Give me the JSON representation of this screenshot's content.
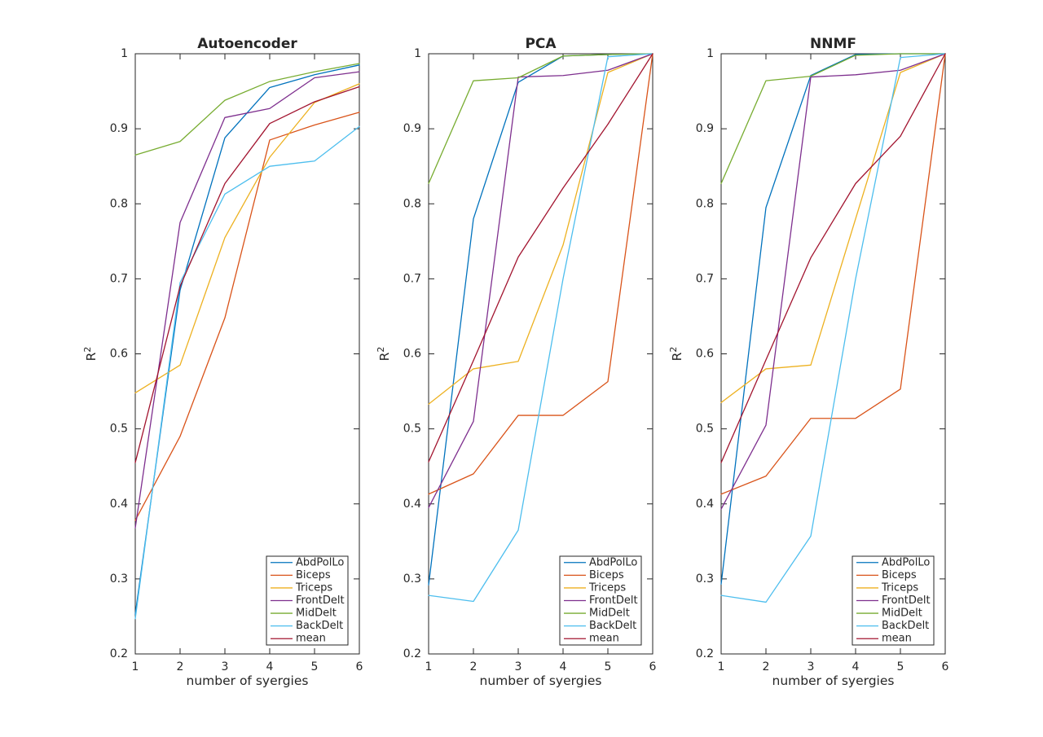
{
  "figure": {
    "background": "#ffffff",
    "axis_color": "#262626",
    "text_color": "#262626"
  },
  "chart_data": [
    {
      "type": "line",
      "title": "Autoencoder",
      "xlabel": "number of syergies",
      "ylabel": {
        "base": "R",
        "superscript": "2"
      },
      "x": [
        1,
        2,
        3,
        4,
        5,
        6
      ],
      "xlim": [
        1,
        6
      ],
      "ylim": [
        0.2,
        1.0
      ],
      "xticks": [
        1,
        2,
        3,
        4,
        5,
        6
      ],
      "xtick_labels": [
        "1",
        "2",
        "3",
        "4",
        "5",
        "6"
      ],
      "yticks": [
        0.2,
        0.3,
        0.4,
        0.5,
        0.6,
        0.7,
        0.8,
        0.9,
        1.0
      ],
      "ytick_labels": [
        "0.2",
        "0.3",
        "0.4",
        "0.5",
        "0.6",
        "0.7",
        "0.8",
        "0.9",
        "1"
      ],
      "grid": false,
      "legend_position": "bottom-right",
      "series": [
        {
          "name": "AbdPolLo",
          "color": "#0072BD",
          "values": [
            0.253,
            0.685,
            0.888,
            0.955,
            0.972,
            0.985
          ]
        },
        {
          "name": "Biceps",
          "color": "#D95319",
          "values": [
            0.378,
            0.49,
            0.648,
            0.885,
            0.905,
            0.922
          ]
        },
        {
          "name": "Triceps",
          "color": "#EDB120",
          "values": [
            0.548,
            0.585,
            0.755,
            0.862,
            0.935,
            0.96
          ]
        },
        {
          "name": "FrontDelt",
          "color": "#7E2F8E",
          "values": [
            0.368,
            0.775,
            0.915,
            0.927,
            0.968,
            0.976
          ]
        },
        {
          "name": "MidDelt",
          "color": "#77AC30",
          "values": [
            0.865,
            0.883,
            0.938,
            0.963,
            0.976,
            0.987
          ]
        },
        {
          "name": "BackDelt",
          "color": "#4DBEEE",
          "values": [
            0.247,
            0.695,
            0.813,
            0.85,
            0.857,
            0.903
          ]
        },
        {
          "name": "mean",
          "color": "#A2142F",
          "values": [
            0.455,
            0.69,
            0.827,
            0.907,
            0.936,
            0.956
          ]
        }
      ]
    },
    {
      "type": "line",
      "title": "PCA",
      "xlabel": "number of syergies",
      "ylabel": {
        "base": "R",
        "superscript": "2"
      },
      "x": [
        1,
        2,
        3,
        4,
        5,
        6
      ],
      "xlim": [
        1,
        6
      ],
      "ylim": [
        0.2,
        1.0
      ],
      "xticks": [
        1,
        2,
        3,
        4,
        5,
        6
      ],
      "xtick_labels": [
        "1",
        "2",
        "3",
        "4",
        "5",
        "6"
      ],
      "yticks": [
        0.2,
        0.3,
        0.4,
        0.5,
        0.6,
        0.7,
        0.8,
        0.9,
        1.0
      ],
      "ytick_labels": [
        "0.2",
        "0.3",
        "0.4",
        "0.5",
        "0.6",
        "0.7",
        "0.8",
        "0.9",
        "1"
      ],
      "grid": false,
      "legend_position": "bottom-right",
      "series": [
        {
          "name": "AbdPolLo",
          "color": "#0072BD",
          "values": [
            0.292,
            0.78,
            0.962,
            0.997,
            0.999,
            1.0
          ]
        },
        {
          "name": "Biceps",
          "color": "#D95319",
          "values": [
            0.413,
            0.44,
            0.518,
            0.518,
            0.563,
            1.0
          ]
        },
        {
          "name": "Triceps",
          "color": "#EDB120",
          "values": [
            0.533,
            0.58,
            0.59,
            0.745,
            0.975,
            1.0
          ]
        },
        {
          "name": "FrontDelt",
          "color": "#7E2F8E",
          "values": [
            0.395,
            0.51,
            0.969,
            0.971,
            0.978,
            1.0
          ]
        },
        {
          "name": "MidDelt",
          "color": "#77AC30",
          "values": [
            0.827,
            0.964,
            0.968,
            0.997,
            0.999,
            1.0
          ]
        },
        {
          "name": "BackDelt",
          "color": "#4DBEEE",
          "values": [
            0.278,
            0.27,
            0.365,
            0.7,
            0.996,
            1.0
          ]
        },
        {
          "name": "mean",
          "color": "#A2142F",
          "values": [
            0.456,
            0.591,
            0.729,
            0.821,
            0.906,
            1.0
          ]
        }
      ]
    },
    {
      "type": "line",
      "title": "NNMF",
      "xlabel": "number of syergies",
      "ylabel": {
        "base": "R",
        "superscript": "2"
      },
      "x": [
        1,
        2,
        3,
        4,
        5,
        6
      ],
      "xlim": [
        1,
        6
      ],
      "ylim": [
        0.2,
        1.0
      ],
      "xticks": [
        1,
        2,
        3,
        4,
        5,
        6
      ],
      "xtick_labels": [
        "1",
        "2",
        "3",
        "4",
        "5",
        "6"
      ],
      "yticks": [
        0.2,
        0.3,
        0.4,
        0.5,
        0.6,
        0.7,
        0.8,
        0.9,
        1.0
      ],
      "ytick_labels": [
        "0.2",
        "0.3",
        "0.4",
        "0.5",
        "0.6",
        "0.7",
        "0.8",
        "0.9",
        "1"
      ],
      "grid": false,
      "legend_position": "bottom-right",
      "series": [
        {
          "name": "AbdPolLo",
          "color": "#0072BD",
          "values": [
            0.293,
            0.795,
            0.971,
            0.999,
            1.0,
            1.0
          ]
        },
        {
          "name": "Biceps",
          "color": "#D95319",
          "values": [
            0.413,
            0.437,
            0.514,
            0.514,
            0.553,
            1.0
          ]
        },
        {
          "name": "Triceps",
          "color": "#EDB120",
          "values": [
            0.535,
            0.58,
            0.585,
            0.78,
            0.975,
            1.0
          ]
        },
        {
          "name": "FrontDelt",
          "color": "#7E2F8E",
          "values": [
            0.393,
            0.505,
            0.969,
            0.972,
            0.978,
            1.0
          ]
        },
        {
          "name": "MidDelt",
          "color": "#77AC30",
          "values": [
            0.827,
            0.964,
            0.97,
            0.998,
            1.0,
            1.0
          ]
        },
        {
          "name": "BackDelt",
          "color": "#4DBEEE",
          "values": [
            0.278,
            0.269,
            0.357,
            0.7,
            0.995,
            1.0
          ]
        },
        {
          "name": "mean",
          "color": "#A2142F",
          "values": [
            0.455,
            0.592,
            0.728,
            0.827,
            0.89,
            1.0
          ]
        }
      ]
    }
  ]
}
